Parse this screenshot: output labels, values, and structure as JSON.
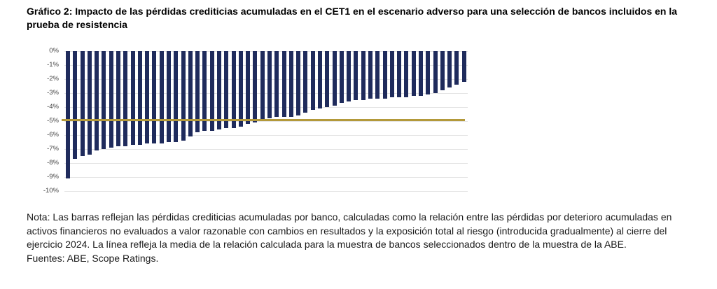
{
  "title": "Gráfico 2: Impacto de las pérdidas crediticias acumuladas en el CET1 en el escenario adverso para una selección de bancos incluidos en la prueba de resistencia",
  "note": "Nota: Las barras reflejan las pérdidas crediticias acumuladas por banco, calculadas como la relación entre las pérdidas por deterioro acumuladas en activos financieros no evaluados a valor razonable con cambios en resultados y la exposición total al riesgo (introducida gradualmente) al cierre del ejercicio 2024. La línea refleja la media de la relación calculada para la muestra de bancos seleccionados dentro de la muestra de la ABE.",
  "sources": "Fuentes: ABE, Scope Ratings.",
  "chart_data": {
    "type": "bar",
    "title": "",
    "xlabel": "",
    "ylabel": "",
    "ylim": [
      -10,
      0
    ],
    "grid": true,
    "legend": "none",
    "x_axis_tick_labels": "none (one unlabeled bar per bank)",
    "ytick_values": [
      0,
      -1,
      -2,
      -3,
      -4,
      -5,
      -6,
      -7,
      -8,
      -9,
      -10
    ],
    "ytick_labels": [
      "0%",
      "-1%",
      "-2%",
      "-3%",
      "-4%",
      "-5%",
      "-6%",
      "-7%",
      "-8%",
      "-9%",
      "-10%"
    ],
    "bar_color": "#1f2b5c",
    "values": [
      -9.1,
      -7.7,
      -7.5,
      -7.4,
      -7.1,
      -7.0,
      -6.9,
      -6.8,
      -6.8,
      -6.7,
      -6.7,
      -6.6,
      -6.6,
      -6.6,
      -6.5,
      -6.5,
      -6.4,
      -6.1,
      -5.8,
      -5.7,
      -5.7,
      -5.6,
      -5.5,
      -5.5,
      -5.4,
      -5.2,
      -5.1,
      -4.9,
      -4.8,
      -4.7,
      -4.7,
      -4.7,
      -4.6,
      -4.4,
      -4.2,
      -4.1,
      -4.0,
      -3.9,
      -3.7,
      -3.6,
      -3.5,
      -3.5,
      -3.4,
      -3.4,
      -3.4,
      -3.3,
      -3.3,
      -3.3,
      -3.2,
      -3.2,
      -3.1,
      -3.0,
      -2.8,
      -2.6,
      -2.4,
      -2.2
    ],
    "mean_line": {
      "value": -4.9,
      "color": "#b3993a"
    }
  }
}
